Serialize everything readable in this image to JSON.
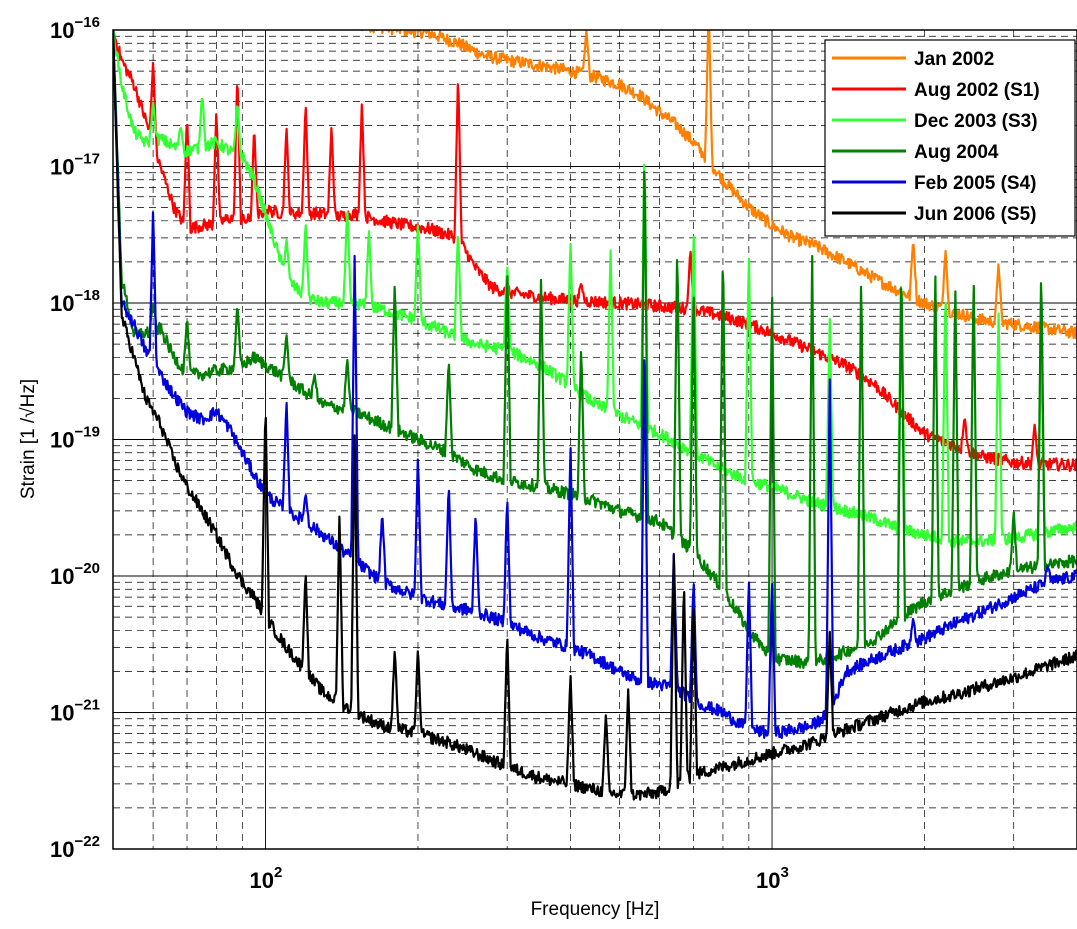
{
  "chart_data": {
    "type": "line",
    "xlabel": "Frequency [Hz]",
    "ylabel": "Strain [1 /√Hz]",
    "xscale": "log",
    "yscale": "log",
    "xlim": [
      50,
      4000
    ],
    "ylim": [
      1e-22,
      1e-16
    ],
    "grid": true,
    "legend_position": "top-right",
    "x_ticks": [
      {
        "value": 100,
        "base": "10",
        "exp": "2"
      },
      {
        "value": 1000,
        "base": "10",
        "exp": "3"
      }
    ],
    "y_ticks": [
      {
        "value": 1e-16,
        "base": "10",
        "exp": "−16"
      },
      {
        "value": 1e-17,
        "base": "10",
        "exp": "−17"
      },
      {
        "value": 1e-18,
        "base": "10",
        "exp": "−18"
      },
      {
        "value": 1e-19,
        "base": "10",
        "exp": "−19"
      },
      {
        "value": 1e-20,
        "base": "10",
        "exp": "−20"
      },
      {
        "value": 1e-21,
        "base": "10",
        "exp": "−21"
      },
      {
        "value": 1e-22,
        "base": "10",
        "exp": "−22"
      }
    ],
    "series": [
      {
        "name": "Jan 2002",
        "color": "#ff8000",
        "x": [
          130,
          150,
          170,
          190,
          210,
          240,
          270,
          300,
          350,
          400,
          450,
          500,
          550,
          600,
          650,
          700,
          750,
          800,
          900,
          1000,
          1100,
          1200,
          1400,
          1600,
          1800,
          2000,
          2300,
          2600,
          3000,
          3500,
          4000
        ],
        "y": [
          1.2e-16,
          1.1e-16,
          1.05e-16,
          1e-16,
          9.5e-17,
          8e-17,
          6.5e-17,
          6e-17,
          5.5e-17,
          5e-17,
          4.5e-17,
          4e-17,
          3.3e-17,
          2.5e-17,
          2e-17,
          1.5e-17,
          1.1e-17,
          8e-18,
          5e-18,
          3.7e-18,
          3e-18,
          2.7e-18,
          2e-18,
          1.5e-18,
          1.2e-18,
          1e-18,
          8.5e-19,
          7.5e-19,
          7e-19,
          6.5e-19,
          6e-19
        ],
        "peaks": [
          [
            750,
            1.5e-16
          ],
          [
            430,
            1e-16
          ],
          [
            1900,
            3e-18
          ],
          [
            2200,
            2.5e-18
          ],
          [
            2800,
            2e-18
          ]
        ]
      },
      {
        "name": "Aug 2002 (S1)",
        "color": "#ff0000",
        "x": [
          50,
          52,
          55,
          58,
          62,
          66,
          70,
          75,
          80,
          85,
          90,
          95,
          100,
          110,
          120,
          130,
          140,
          150,
          170,
          190,
          210,
          240,
          260,
          280,
          300,
          350,
          400,
          500,
          600,
          700,
          800,
          900,
          1000,
          1200,
          1400,
          1600,
          1800,
          2000,
          2300,
          2600,
          3000,
          3500,
          4000
        ],
        "y": [
          1e-16,
          6e-17,
          4e-17,
          2.2e-17,
          1e-17,
          5e-18,
          3.5e-18,
          3.7e-18,
          3.8e-18,
          4.2e-18,
          4e-18,
          4.1e-18,
          4.8e-18,
          4.5e-18,
          4.6e-18,
          4.5e-18,
          4.3e-18,
          4.5e-18,
          4e-18,
          3.7e-18,
          3.5e-18,
          3e-18,
          1.8e-18,
          1.3e-18,
          1.2e-18,
          1.1e-18,
          1.05e-18,
          1e-18,
          9.5e-19,
          9e-19,
          8e-19,
          7e-19,
          6e-19,
          4.5e-19,
          3.5e-19,
          2.5e-19,
          1.6e-19,
          1.1e-19,
          9e-20,
          7.5e-20,
          6.8e-20,
          6.6e-20,
          6.5e-20
        ],
        "peaks": [
          [
            60,
            6e-17
          ],
          [
            70,
            2.5e-17
          ],
          [
            80,
            2.7e-17
          ],
          [
            88,
            5e-17
          ],
          [
            95,
            2e-17
          ],
          [
            110,
            2e-17
          ],
          [
            120,
            3e-17
          ],
          [
            135,
            2e-17
          ],
          [
            155,
            3e-17
          ],
          [
            240,
            5e-17
          ],
          [
            420,
            1.4e-18
          ],
          [
            690,
            2.5e-18
          ],
          [
            2400,
            1.5e-19
          ],
          [
            3300,
            1.3e-19
          ]
        ]
      },
      {
        "name": "Dec 2003 (S3)",
        "color": "#33ff33",
        "x": [
          50,
          52,
          55,
          58,
          62,
          66,
          70,
          75,
          80,
          85,
          90,
          95,
          100,
          110,
          120,
          130,
          150,
          170,
          200,
          230,
          260,
          300,
          350,
          400,
          450,
          500,
          600,
          700,
          800,
          900,
          1000,
          1200,
          1400,
          1600,
          1800,
          2000,
          2300,
          2600,
          3000,
          3500,
          4000
        ],
        "y": [
          1e-16,
          4e-17,
          1.8e-17,
          1.5e-17,
          1.6e-17,
          1.4e-17,
          1.3e-17,
          1.4e-17,
          1.5e-17,
          1.3e-17,
          1.2e-17,
          8e-18,
          4.5e-18,
          1.5e-18,
          1.1e-18,
          1e-18,
          1e-18,
          9e-19,
          7.5e-19,
          6e-19,
          5e-19,
          4.5e-19,
          3.5e-19,
          2.5e-19,
          1.8e-19,
          1.5e-19,
          1.1e-19,
          8e-20,
          6e-20,
          5e-20,
          4.5e-20,
          3.5e-20,
          3e-20,
          2.6e-20,
          2.2e-20,
          2e-20,
          1.8e-20,
          1.8e-20,
          1.9e-20,
          2.1e-20,
          2.3e-20
        ],
        "peaks": [
          [
            60,
            3e-17
          ],
          [
            68,
            2e-17
          ],
          [
            75,
            3.5e-17
          ],
          [
            88,
            3e-17
          ],
          [
            110,
            3e-18
          ],
          [
            120,
            4e-18
          ],
          [
            145,
            5e-18
          ],
          [
            160,
            3.5e-18
          ],
          [
            200,
            4e-18
          ],
          [
            240,
            3.5e-18
          ],
          [
            300,
            2e-18
          ],
          [
            400,
            3e-18
          ],
          [
            480,
            2.5e-18
          ],
          [
            560,
            1.5e-17
          ],
          [
            700,
            4e-18
          ],
          [
            900,
            2.5e-18
          ],
          [
            1300,
            8e-19
          ],
          [
            1800,
            2e-18
          ],
          [
            2200,
            1.5e-18
          ],
          [
            2800,
            9e-19
          ],
          [
            3400,
            5e-19
          ]
        ]
      },
      {
        "name": "Aug 2004",
        "color": "#008000",
        "x": [
          50,
          52,
          55,
          58,
          62,
          66,
          70,
          75,
          80,
          85,
          90,
          95,
          100,
          110,
          120,
          130,
          150,
          170,
          200,
          230,
          260,
          300,
          350,
          400,
          450,
          500,
          600,
          700,
          800,
          900,
          1000,
          1200,
          1400,
          1600,
          1800,
          2000,
          2300,
          2600,
          3000,
          3500,
          4000
        ],
        "y": [
          1e-16,
          1.5e-18,
          6e-19,
          6e-19,
          6.5e-19,
          4e-19,
          3e-19,
          3e-19,
          3.2e-19,
          3.3e-19,
          3.5e-19,
          4e-19,
          3.5e-19,
          2.8e-19,
          2.2e-19,
          1.8e-19,
          1.6e-19,
          1.3e-19,
          1e-19,
          8e-20,
          6e-20,
          5e-20,
          4.5e-20,
          4e-20,
          3.5e-20,
          3e-20,
          2.5e-20,
          1.5e-20,
          8e-21,
          4e-21,
          2.5e-21,
          2.3e-21,
          2.8e-21,
          3.5e-21,
          5e-21,
          6.5e-21,
          8e-21,
          9.5e-21,
          1.1e-20,
          1.2e-20,
          1.3e-20
        ],
        "peaks": [
          [
            60,
            1e-18
          ],
          [
            70,
            8e-19
          ],
          [
            88,
            1e-18
          ],
          [
            110,
            6e-19
          ],
          [
            125,
            3e-19
          ],
          [
            145,
            4e-19
          ],
          [
            180,
            1.5e-18
          ],
          [
            230,
            4e-19
          ],
          [
            300,
            2e-18
          ],
          [
            350,
            1.6e-18
          ],
          [
            420,
            5e-19
          ],
          [
            560,
            1.5e-17
          ],
          [
            650,
            3e-18
          ],
          [
            700,
            1.5e-18
          ],
          [
            800,
            3e-18
          ],
          [
            1000,
            1.5e-18
          ],
          [
            1200,
            2.5e-18
          ],
          [
            1500,
            2e-18
          ],
          [
            1800,
            2.3e-18
          ],
          [
            2100,
            2e-18
          ],
          [
            2300,
            1.5e-18
          ],
          [
            2500,
            1.8e-18
          ],
          [
            3000,
            3e-20
          ],
          [
            3400,
            2e-18
          ]
        ]
      },
      {
        "name": "Feb 2005 (S4)",
        "color": "#0000dd",
        "x": [
          50,
          52,
          55,
          58,
          62,
          66,
          70,
          75,
          80,
          85,
          90,
          95,
          100,
          110,
          120,
          130,
          150,
          170,
          200,
          230,
          260,
          300,
          350,
          400,
          450,
          500,
          550,
          600,
          650,
          700,
          800,
          900,
          1000,
          1100,
          1200,
          1300,
          1400,
          1600,
          1800,
          2000,
          2300,
          2600,
          3000,
          3500,
          4000
        ],
        "y": [
          1e-16,
          1e-18,
          7e-19,
          4.5e-19,
          3e-19,
          2.1e-19,
          1.6e-19,
          1.4e-19,
          1.6e-19,
          1.2e-19,
          8e-20,
          5.5e-20,
          4e-20,
          3e-20,
          2.5e-20,
          2e-20,
          1.3e-20,
          9e-21,
          7e-21,
          6e-21,
          5.5e-21,
          4.5e-21,
          3.5e-21,
          3e-21,
          2.5e-21,
          2e-21,
          1.7e-21,
          1.6e-21,
          1.5e-21,
          1.2e-21,
          1e-21,
          7.5e-22,
          7e-22,
          7.5e-22,
          8e-22,
          1e-21,
          2e-21,
          2.5e-21,
          3e-21,
          3.5e-21,
          4.5e-21,
          5.5e-21,
          7e-21,
          9e-21,
          1e-20
        ],
        "peaks": [
          [
            60,
            5e-18
          ],
          [
            110,
            2e-19
          ],
          [
            120,
            4e-20
          ],
          [
            150,
            2.5e-18
          ],
          [
            170,
            3e-20
          ],
          [
            200,
            8e-20
          ],
          [
            230,
            5e-20
          ],
          [
            260,
            3e-20
          ],
          [
            300,
            4e-20
          ],
          [
            400,
            1e-19
          ],
          [
            560,
            6e-19
          ],
          [
            640,
            1.5e-20
          ],
          [
            700,
            1e-20
          ],
          [
            900,
            1e-20
          ],
          [
            1000,
            1e-20
          ],
          [
            1300,
            3e-19
          ],
          [
            1900,
            5e-21
          ],
          [
            3500,
            1.2e-20
          ]
        ]
      },
      {
        "name": "Jun 2006 (S5)",
        "color": "#000000",
        "x": [
          50,
          52,
          55,
          58,
          62,
          66,
          70,
          75,
          80,
          85,
          90,
          95,
          100,
          110,
          120,
          130,
          150,
          170,
          200,
          230,
          260,
          300,
          350,
          400,
          450,
          500,
          550,
          600,
          650,
          700,
          800,
          900,
          1000,
          1200,
          1400,
          1600,
          1800,
          2000,
          2300,
          2600,
          3000,
          3500,
          4000
        ],
        "y": [
          1e-16,
          8e-19,
          4e-19,
          2e-19,
          1.3e-19,
          7e-20,
          4.5e-20,
          3e-20,
          2e-20,
          1.3e-20,
          9e-21,
          7e-21,
          5e-21,
          3e-21,
          2e-21,
          1.4e-21,
          1e-21,
          8e-22,
          7e-22,
          6e-22,
          5e-22,
          4e-22,
          3.3e-22,
          3e-22,
          2.7e-22,
          2.5e-22,
          2.5e-22,
          2.6e-22,
          3e-22,
          3.5e-22,
          4e-22,
          4.5e-22,
          5e-22,
          6e-22,
          7.5e-22,
          9e-22,
          1.05e-21,
          1.2e-21,
          1.35e-21,
          1.55e-21,
          1.8e-21,
          2.2e-21,
          2.6e-21
        ],
        "peaks": [
          [
            60,
            5e-20
          ],
          [
            100,
            2e-19
          ],
          [
            120,
            1.1e-20
          ],
          [
            140,
            3e-20
          ],
          [
            150,
            1.2e-19
          ],
          [
            180,
            3e-21
          ],
          [
            200,
            3e-21
          ],
          [
            300,
            4e-21
          ],
          [
            400,
            2e-21
          ],
          [
            470,
            1e-21
          ],
          [
            520,
            1.5e-21
          ],
          [
            640,
            1.5e-20
          ],
          [
            670,
            1e-20
          ],
          [
            700,
            7e-21
          ],
          [
            1300,
            4e-21
          ]
        ]
      }
    ]
  }
}
